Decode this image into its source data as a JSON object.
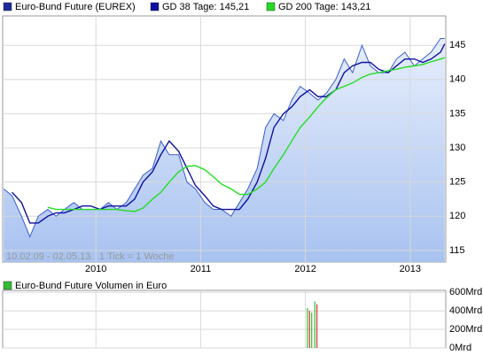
{
  "chart_data": [
    {
      "type": "line",
      "annotations": [
        "10.02.09 - 02.05.13",
        "1 Tick = 1 Woche"
      ],
      "x": [
        2009.12,
        2009.2,
        2009.29,
        2009.37,
        2009.45,
        2009.54,
        2009.62,
        2009.7,
        2009.79,
        2009.87,
        2009.95,
        2010.04,
        2010.12,
        2010.2,
        2010.29,
        2010.37,
        2010.45,
        2010.54,
        2010.62,
        2010.7,
        2010.79,
        2010.87,
        2010.95,
        2011.04,
        2011.12,
        2011.2,
        2011.29,
        2011.37,
        2011.45,
        2011.54,
        2011.62,
        2011.7,
        2011.79,
        2011.87,
        2011.95,
        2012.04,
        2012.12,
        2012.2,
        2012.29,
        2012.37,
        2012.45,
        2012.54,
        2012.62,
        2012.7,
        2012.79,
        2012.87,
        2012.95,
        2013.04,
        2013.12,
        2013.2,
        2013.29,
        2013.33
      ],
      "series": [
        {
          "name": "Euro-Bund Future (EUREX)",
          "color": "#3a5fcd",
          "area": true,
          "values": [
            124,
            123,
            120,
            117,
            120,
            121,
            120,
            121,
            122,
            121,
            121,
            121,
            122,
            121,
            122,
            124,
            126,
            127,
            131,
            129,
            129,
            125,
            124,
            122,
            121,
            121,
            120,
            122,
            124,
            127,
            133,
            135,
            134,
            137,
            139,
            138,
            137,
            138,
            140,
            143,
            141,
            145,
            142,
            141,
            141,
            143,
            144,
            142,
            143,
            144,
            146,
            146
          ]
        },
        {
          "name": "GD 38 Tage: 145,21",
          "color": "#1010a0",
          "values": [
            null,
            123.5,
            122,
            119,
            119,
            120,
            120.5,
            120.5,
            121,
            121.5,
            121.5,
            121,
            121.5,
            121.5,
            121.5,
            122.5,
            125,
            126.5,
            129,
            131,
            129.5,
            127,
            124.5,
            123,
            121.5,
            121,
            121,
            121,
            122.5,
            125,
            128.5,
            133,
            135,
            136,
            137.5,
            138.5,
            137.5,
            137.5,
            138.5,
            141,
            142,
            142.5,
            142.5,
            141.5,
            141,
            142,
            143,
            143,
            142.5,
            143,
            144,
            145.21
          ]
        },
        {
          "name": "GD 200 Tage: 143,21",
          "color": "#22dd22",
          "values": [
            null,
            null,
            null,
            null,
            null,
            121.3,
            121,
            121,
            121,
            121,
            121,
            121,
            121,
            121,
            120.8,
            120.7,
            121.2,
            122.5,
            123.5,
            125,
            126.5,
            127.3,
            127.4,
            126.8,
            125.8,
            124.7,
            124,
            123.2,
            123.2,
            124,
            125,
            127,
            129,
            131,
            133,
            134.5,
            136,
            137.3,
            138.5,
            139,
            139.5,
            140.3,
            140.8,
            141,
            141.3,
            141.5,
            141.8,
            142,
            142.2,
            142.6,
            143,
            143.21
          ]
        }
      ],
      "xlim": [
        2009.11,
        2013.34
      ],
      "xticks": [
        2010,
        2011,
        2012,
        2013
      ],
      "ylim": [
        113.3,
        149.3
      ],
      "yticks": [
        115,
        120,
        125,
        130,
        135,
        140,
        145
      ],
      "grid": true
    },
    {
      "type": "bar",
      "title": "Euro-Bund Future Volumen in Euro",
      "color": "#33bb33",
      "x": [
        2012.02,
        2012.04,
        2012.06,
        2012.09,
        2012.11
      ],
      "values": [
        430,
        400,
        380,
        500,
        470
      ],
      "colors": [
        "#33bb33",
        "#dd3333",
        "#33bb33",
        "#33bb33",
        "#dd3333"
      ],
      "xlim": [
        2009.11,
        2013.34
      ],
      "xticks": [
        2010,
        2011,
        2012,
        2013
      ],
      "ylim": [
        0,
        620
      ],
      "yticks": [
        {
          "value": 0,
          "label": "0Mrd"
        },
        {
          "value": 200,
          "label": "200Mrd"
        },
        {
          "value": 400,
          "label": "400Mrd"
        },
        {
          "value": 600,
          "label": "600Mrd"
        }
      ],
      "grid": true
    }
  ]
}
